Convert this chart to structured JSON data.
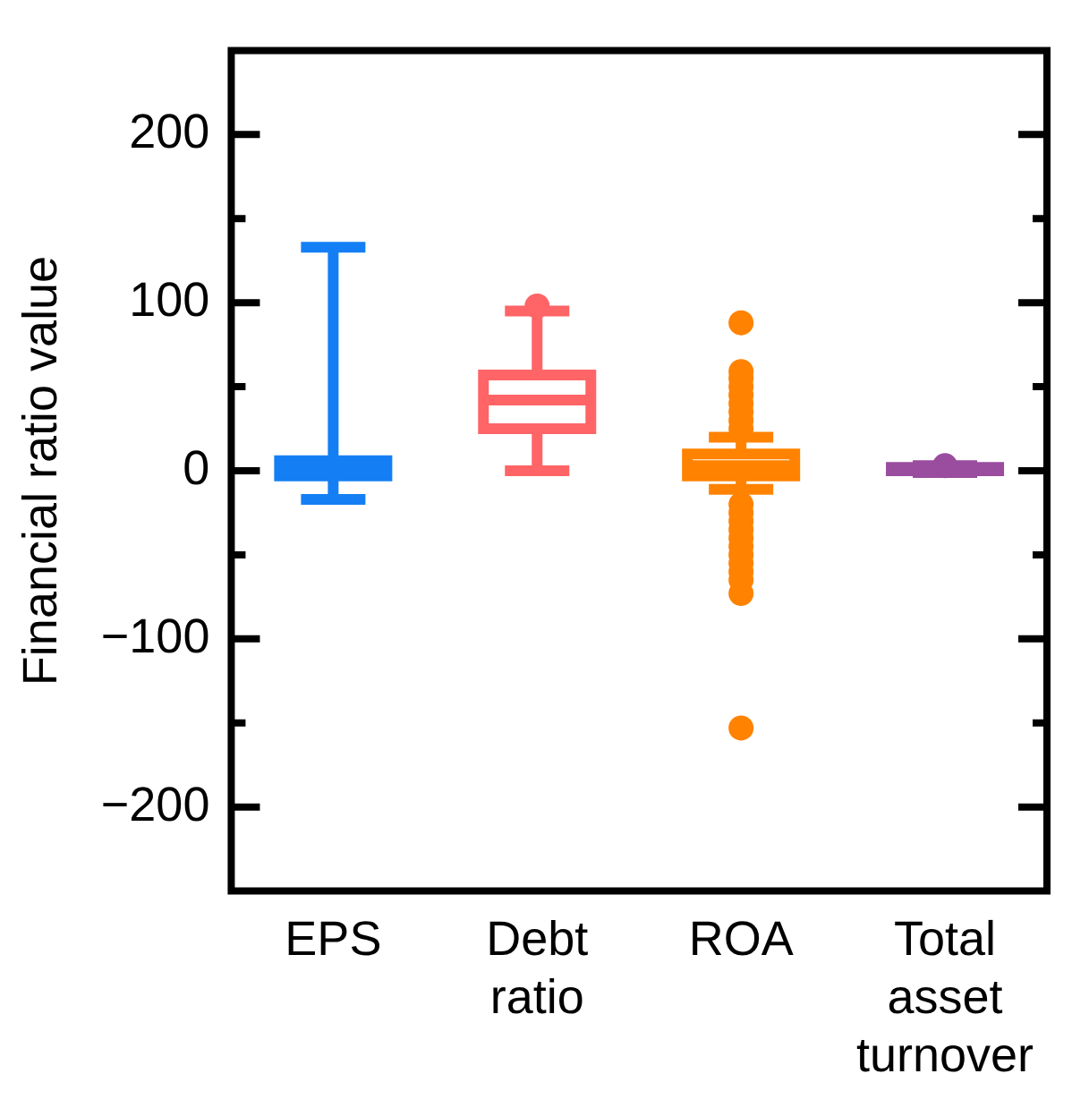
{
  "chart_data": {
    "type": "box",
    "ylabel": "Financial ratio value",
    "categories": [
      "EPS",
      "Debt ratio",
      "ROA",
      "Total asset turnover"
    ],
    "ylim": [
      -250,
      250
    ],
    "yticks": [
      -200,
      {
        "value": -150,
        "label": null
      },
      -100,
      {
        "value": -50,
        "label": null
      },
      0,
      {
        "value": 50,
        "label": null
      },
      100,
      {
        "value": 150,
        "label": null
      },
      200
    ],
    "grid": false,
    "legend": false,
    "colors": [
      "#147ff5",
      "#ff6466",
      "#ff8200",
      "#9a4c9e"
    ],
    "boxes": [
      {
        "low": -17,
        "q1": -3,
        "median": 1,
        "q3": 6,
        "high": 133
      },
      {
        "low": 0,
        "q1": 25,
        "median": 42,
        "q3": 57,
        "high": 95,
        "outliers": [
          98
        ]
      },
      {
        "low": -11,
        "q1": -3,
        "median": 3,
        "q3": 10,
        "high": 20,
        "outliers": [
          88,
          25,
          30,
          35,
          40,
          45,
          50,
          55,
          59,
          -20,
          -25,
          -30,
          -35,
          -40,
          -45,
          -50,
          -55,
          -60,
          -65,
          -73,
          -153
        ]
      },
      {
        "low": -1,
        "q1": 0,
        "median": 1,
        "q3": 2,
        "high": 3,
        "outliers": [
          3
        ]
      }
    ]
  }
}
